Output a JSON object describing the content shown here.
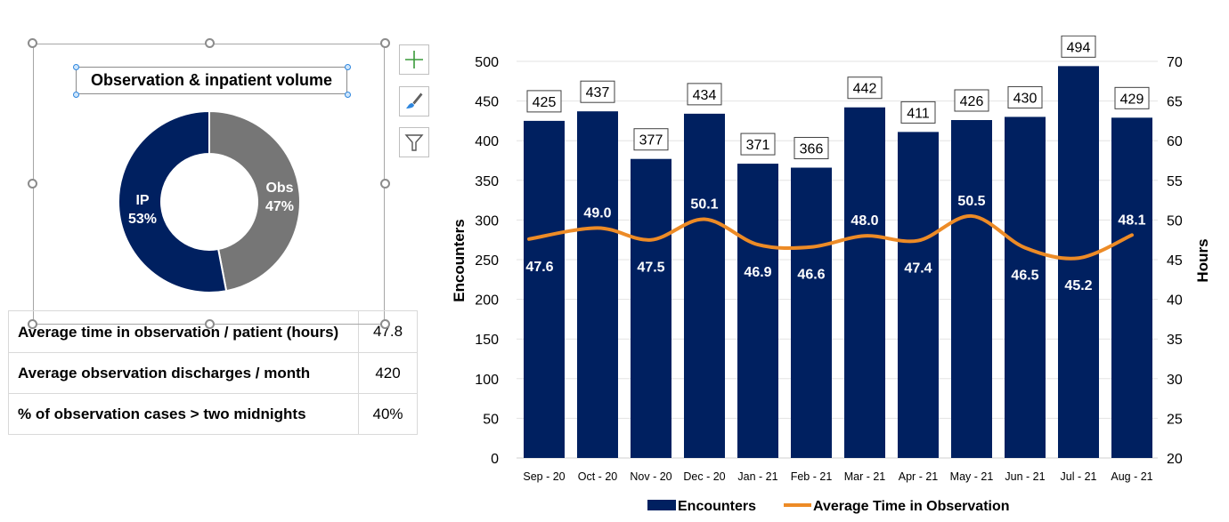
{
  "donut": {
    "title": "Observation & inpatient volume",
    "slices": [
      {
        "name": "Obs",
        "label": "Obs",
        "pct_label": "47%",
        "value": 47,
        "color": "#767676"
      },
      {
        "name": "IP",
        "label": "IP",
        "pct_label": "53%",
        "value": 53,
        "color": "#002060"
      }
    ],
    "side_buttons": [
      {
        "name": "chart-elements",
        "icon": "plus-icon"
      },
      {
        "name": "chart-styles",
        "icon": "paintbrush-icon"
      },
      {
        "name": "chart-filters",
        "icon": "funnel-icon"
      }
    ]
  },
  "stats": [
    {
      "label": "Average time in observation / patient (hours)",
      "value": "47.8"
    },
    {
      "label": "Average observation discharges / month",
      "value": "420"
    },
    {
      "label": "% of observation cases > two midnights",
      "value": "40%"
    }
  ],
  "chart_data": {
    "type": "bar",
    "categories": [
      "Sep - 20",
      "Oct - 20",
      "Nov - 20",
      "Dec - 20",
      "Jan - 21",
      "Feb - 21",
      "Mar - 21",
      "Apr - 21",
      "May - 21",
      "Jun - 21",
      "Jul - 21",
      "Aug - 21"
    ],
    "series": [
      {
        "name": "Encounters",
        "type": "bar",
        "axis": "left",
        "color": "#002060",
        "values": [
          425,
          437,
          377,
          434,
          371,
          366,
          442,
          411,
          426,
          430,
          494,
          429
        ]
      },
      {
        "name": "Average Time in Observation",
        "type": "line",
        "axis": "right",
        "color": "#ED8B26",
        "values": [
          47.6,
          49.0,
          47.5,
          50.1,
          46.9,
          46.6,
          48.0,
          47.4,
          50.5,
          46.5,
          45.2,
          48.1
        ]
      }
    ],
    "ylabel": "Encounters",
    "y2label": "Hours",
    "ylim": [
      0,
      500
    ],
    "y2lim": [
      20,
      70
    ],
    "yticks": [
      0,
      50,
      100,
      150,
      200,
      250,
      300,
      350,
      400,
      450,
      500
    ],
    "y2ticks": [
      20,
      25,
      30,
      35,
      40,
      45,
      50,
      55,
      60,
      65,
      70
    ],
    "grid": true,
    "legend": "bottom"
  }
}
